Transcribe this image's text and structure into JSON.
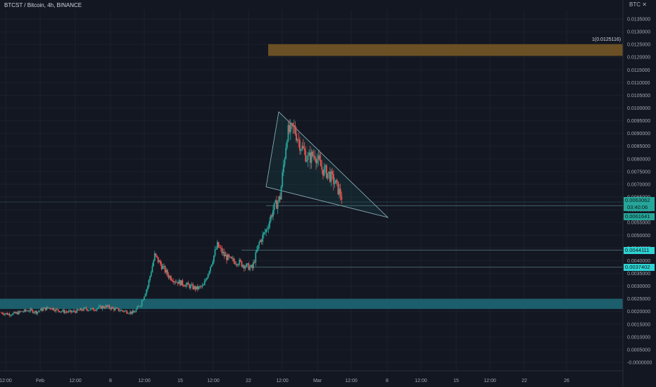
{
  "title": "BTCST / Bitcoin, 4h, BINANCE",
  "axis_unit": "BTC",
  "chart_data": {
    "type": "candlestick",
    "symbol": "BTCST / Bitcoin",
    "interval": "4h",
    "exchange": "BINANCE",
    "ylim": [
      -0.0,
      0.014
    ],
    "y_ticks": [
      "0.0135000",
      "0.0130000",
      "0.0125000",
      "0.0120000",
      "0.0115000",
      "0.0110000",
      "0.0105000",
      "0.0100000",
      "0.0095000",
      "0.0090000",
      "0.0085000",
      "0.0080000",
      "0.0075000",
      "0.0070000",
      "0.0065000",
      "0.0060000",
      "0.0055000",
      "0.0050000",
      "0.0045000",
      "0.0040000",
      "0.0035000",
      "0.0030000",
      "0.0025000",
      "0.0020000",
      "0.0015000",
      "0.0010000",
      "0.0005000",
      "-0.0000000"
    ],
    "y_tick_values": [
      0.0135,
      0.013,
      0.0125,
      0.012,
      0.0115,
      0.011,
      0.0105,
      0.01,
      0.0095,
      0.009,
      0.0085,
      0.008,
      0.0075,
      0.007,
      0.0065,
      0.006,
      0.0055,
      0.005,
      0.0045,
      0.004,
      0.0035,
      0.003,
      0.0025,
      0.002,
      0.0015,
      0.001,
      0.0005,
      0.0
    ],
    "x_ticks": [
      "12:00",
      "Feb",
      "12:00",
      "8",
      "12:00",
      "15",
      "12:00",
      "22",
      "12:00",
      "Mar",
      "12:00",
      "8",
      "12:00",
      "15",
      "12:00",
      "22",
      "12:00",
      "26"
    ],
    "candles_daily_close_path": [
      0.00195,
      0.0019,
      0.00192,
      0.002,
      0.00205,
      0.00198,
      0.0021,
      0.00215,
      0.00205,
      0.002,
      0.00198,
      0.00203,
      0.0021,
      0.00208,
      0.00215,
      0.0022,
      0.00212,
      0.00205,
      0.002,
      0.00195,
      0.0023,
      0.003,
      0.0042,
      0.0038,
      0.0034,
      0.0032,
      0.0031,
      0.003,
      0.0029,
      0.003,
      0.0038,
      0.0046,
      0.0042,
      0.004,
      0.00395,
      0.0038,
      0.0037,
      0.0047,
      0.0052,
      0.006,
      0.0065,
      0.009,
      0.0092,
      0.0085,
      0.008,
      0.0082,
      0.0076,
      0.0074,
      0.007,
      0.0064
    ],
    "last_price": "0.0063062",
    "countdown": "03:40:06",
    "levels": [
      {
        "label": "0.0061641",
        "value": 0.0061641
      },
      {
        "label": "0.0044111",
        "value": 0.0044111
      },
      {
        "label": "0.0037402",
        "value": 0.0037402
      }
    ],
    "zones": [
      {
        "name": "resistance",
        "from": 0.01205,
        "to": 0.0125116,
        "label": "1(0.0125116)",
        "color": "#c7882c"
      },
      {
        "name": "support",
        "from": 0.0021,
        "to": 0.0025,
        "color": "#2e8fa1"
      }
    ],
    "pattern": "falling-wedge",
    "colors": {
      "up": "#26a69a",
      "down": "#ef5350",
      "background": "#131722",
      "grid": "#1e222d"
    }
  }
}
